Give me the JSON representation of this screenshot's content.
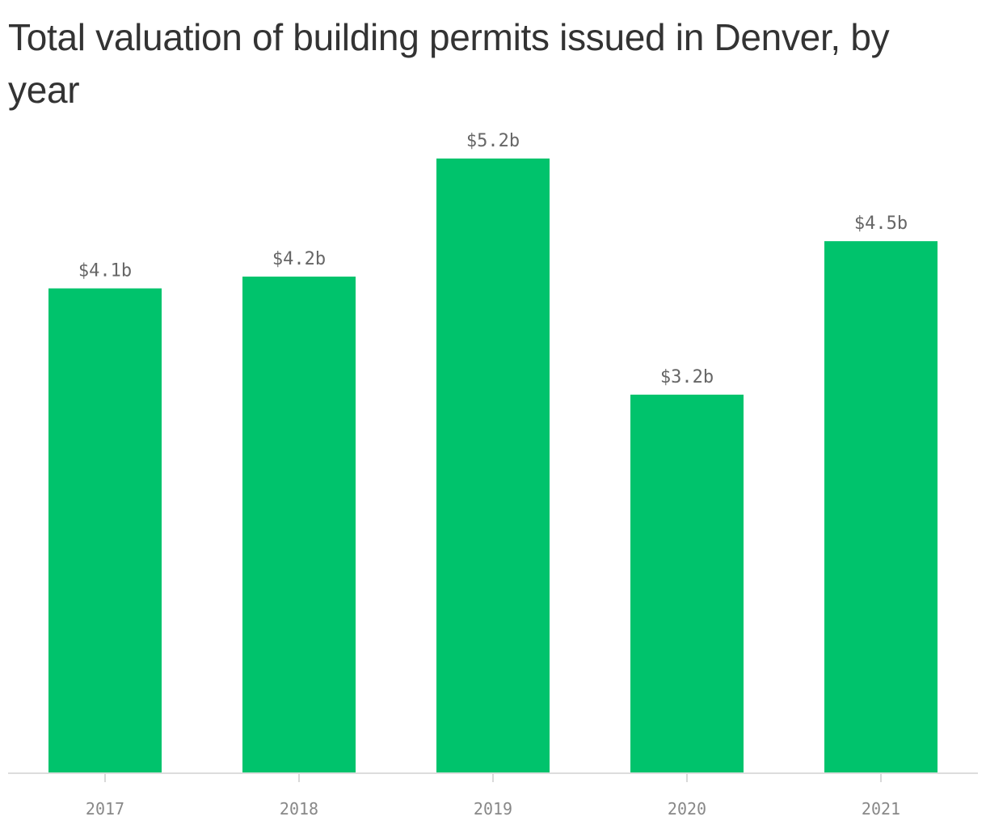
{
  "chart_data": {
    "type": "bar",
    "title": "Total valuation of building permits issued in Denver, by year",
    "categories": [
      "2017",
      "2018",
      "2019",
      "2020",
      "2021"
    ],
    "values": [
      4.1,
      4.2,
      5.2,
      3.2,
      4.5
    ],
    "data_labels": [
      "$4.1b",
      "$4.2b",
      "$5.2b",
      "$3.2b",
      "$4.5b"
    ],
    "xlabel": "",
    "ylabel": "",
    "ylim": [
      0,
      5.2
    ],
    "grid": false,
    "legend": "none",
    "bar_color": "#00c36c"
  }
}
